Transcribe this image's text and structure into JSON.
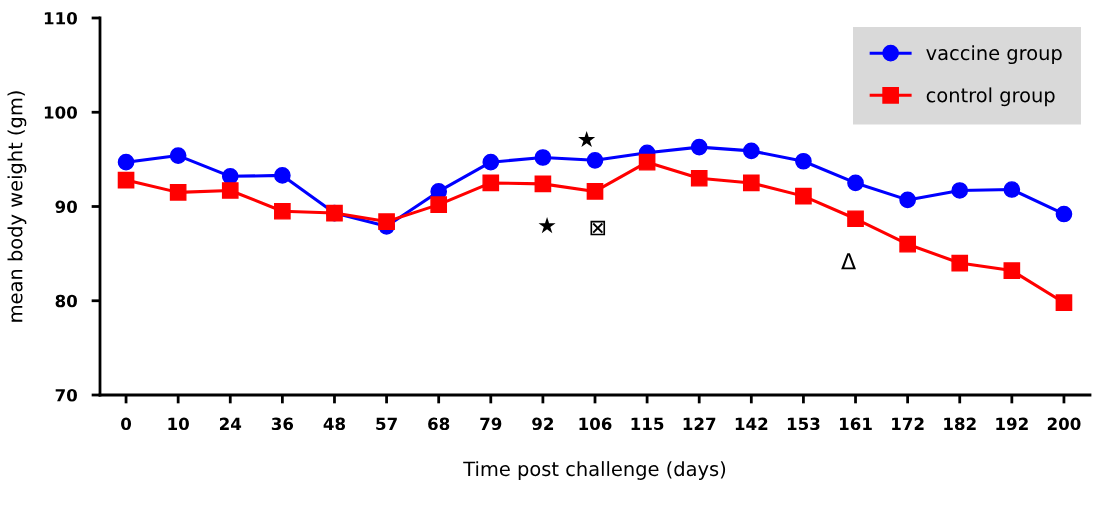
{
  "chart_data": {
    "type": "line",
    "xlabel": "Time post challenge (days)",
    "ylabel": "mean body weight (gm)",
    "categories": [
      "0",
      "10",
      "24",
      "36",
      "48",
      "57",
      "68",
      "79",
      "92",
      "106",
      "115",
      "127",
      "142",
      "153",
      "161",
      "172",
      "182",
      "192",
      "200"
    ],
    "series": [
      {
        "name": "vaccine group",
        "color": "#0000ff",
        "marker": "circle",
        "values": [
          94.7,
          95.4,
          93.2,
          93.3,
          89.3,
          87.9,
          91.6,
          94.7,
          95.2,
          94.9,
          95.7,
          96.3,
          95.9,
          94.8,
          92.5,
          90.7,
          91.7,
          91.8,
          89.2
        ]
      },
      {
        "name": "control group",
        "color": "#ff0000",
        "marker": "square",
        "values": [
          92.8,
          91.5,
          91.7,
          89.5,
          89.3,
          88.4,
          90.2,
          92.5,
          92.4,
          91.6,
          94.7,
          93.0,
          92.5,
          91.1,
          88.7,
          86.0,
          84.0,
          83.2,
          79.8
        ]
      }
    ],
    "ylim": [
      70,
      110
    ],
    "yticks": [
      70,
      80,
      90,
      100,
      110
    ],
    "grid": false,
    "legend": "top right",
    "line_style": "solid",
    "annotations": [
      {
        "text": "★",
        "x": "106",
        "y": 94.9
      },
      {
        "text": "★",
        "x": "92",
        "y": 92.4
      },
      {
        "text": "⊠",
        "x": "106",
        "y": 91.6
      },
      {
        "text": "Δ",
        "x": "161",
        "y": 88.7
      }
    ]
  }
}
